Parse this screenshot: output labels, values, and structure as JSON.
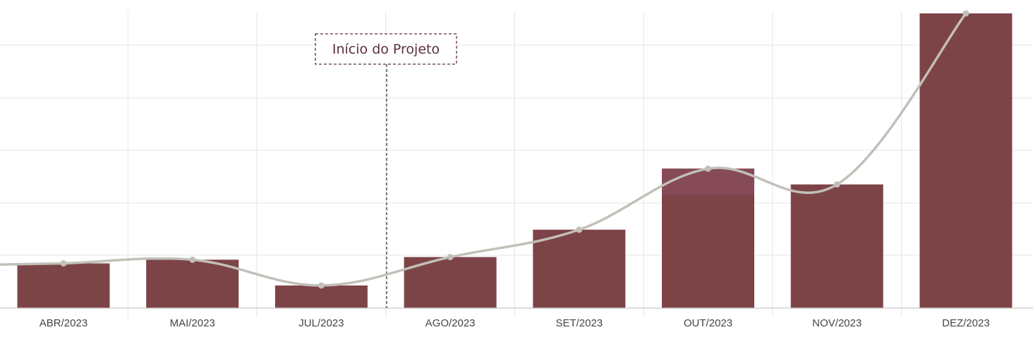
{
  "chart_data": {
    "type": "bar",
    "categories": [
      "ABR/2023",
      "MAI/2023",
      "JUL/2023",
      "AGO/2023",
      "SET/2023",
      "OUT/2023",
      "NOV/2023",
      "DEZ/2023"
    ],
    "series": [
      {
        "type": "bar",
        "values": [
          8.5,
          9.2,
          4.3,
          9.7,
          14.9,
          26.5,
          23.5,
          56.0
        ]
      },
      {
        "type": "line",
        "values": [
          8.5,
          9.2,
          4.3,
          9.7,
          14.9,
          26.5,
          23.5,
          56.0
        ]
      }
    ],
    "ylim": [
      0,
      56
    ],
    "grid": true,
    "annotation": {
      "label": "Início do Projeto",
      "position_between": [
        "JUL/2023",
        "AGO/2023"
      ]
    },
    "colors": {
      "bar": "#7d4448",
      "bar_highlight": "#874a57",
      "line": "#c2c0b8",
      "grid": "#e4e4e4",
      "annotation": "#5a3138"
    }
  }
}
